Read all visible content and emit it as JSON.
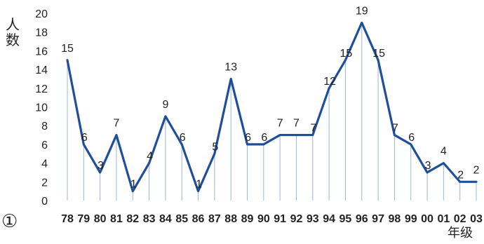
{
  "chart_data": {
    "type": "line",
    "ylabel": "人数",
    "xlabel": "年级",
    "panel_marker": "①",
    "categories": [
      "78",
      "79",
      "80",
      "81",
      "82",
      "83",
      "84",
      "85",
      "86",
      "87",
      "88",
      "89",
      "90",
      "91",
      "92",
      "93",
      "94",
      "95",
      "96",
      "97",
      "98",
      "99",
      "00",
      "01",
      "02",
      "03"
    ],
    "series": [
      {
        "values": [
          15,
          6,
          3,
          7,
          1,
          4,
          9,
          6,
          1,
          5,
          13,
          6,
          6,
          7,
          7,
          7,
          12,
          15,
          19,
          15,
          7,
          6,
          3,
          4,
          2,
          2
        ]
      }
    ],
    "y_ticks": [
      0,
      2,
      4,
      6,
      8,
      10,
      12,
      14,
      16,
      18,
      20
    ],
    "ylim": [
      0,
      20
    ],
    "grid": "vertical drop lines",
    "colors": {
      "line": "#1f4e9c",
      "droplines": "#9ab8d0",
      "text": "#222222"
    }
  }
}
